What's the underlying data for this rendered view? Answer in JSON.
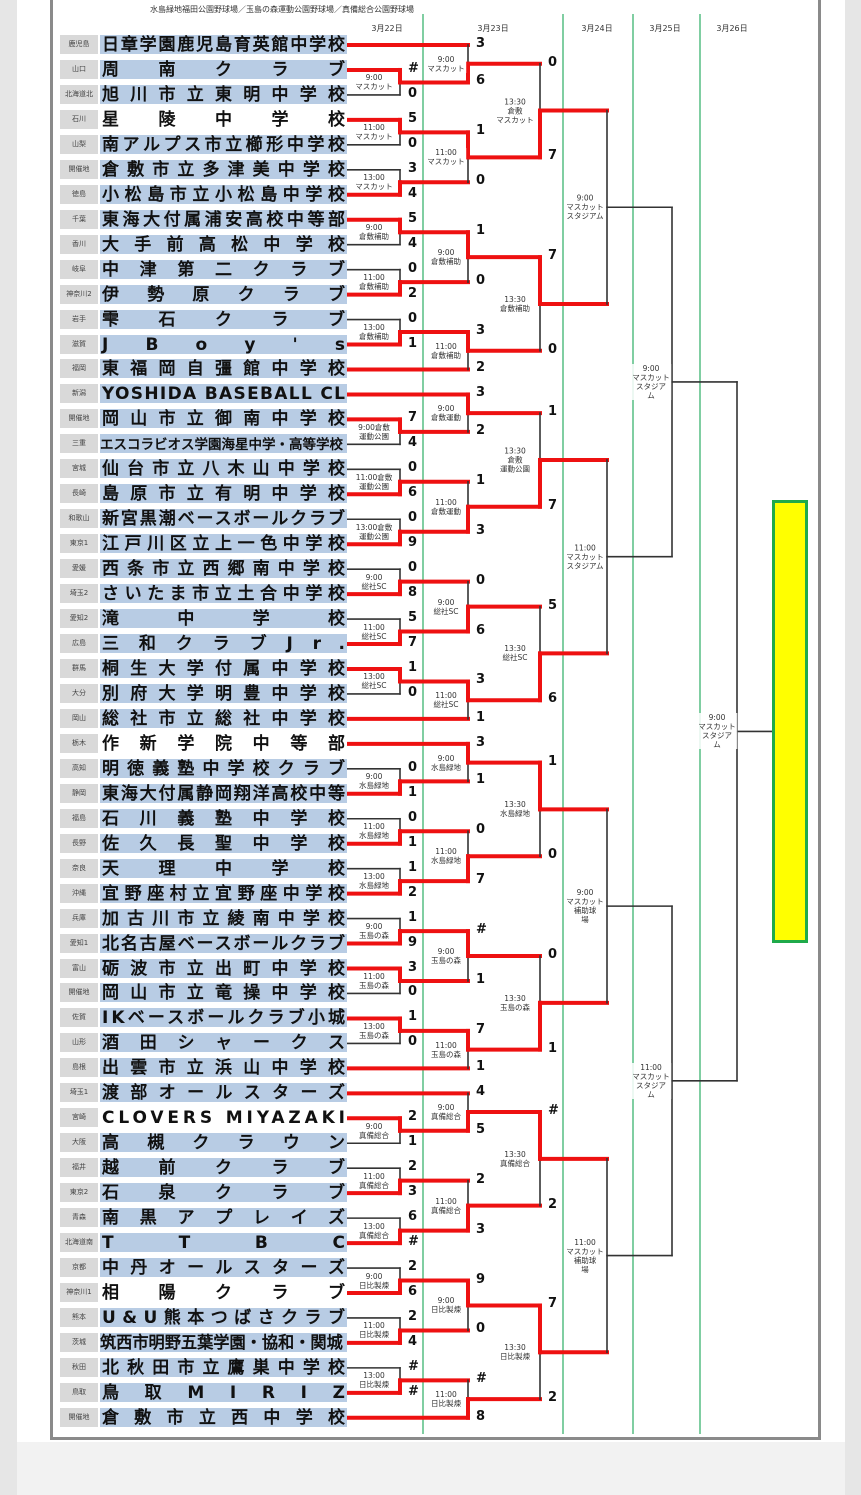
{
  "header": {
    "venues_line": "水島緑地福田公園野球場／玉島の森運動公園野球場／真備総合公園野球場",
    "dates": [
      "3月22日",
      "3月23日",
      "3月24日",
      "3月25日",
      "3月26日"
    ]
  },
  "colors": {
    "winner_line": "#ee1111",
    "line": "#333333",
    "day_divider": "#3cb371",
    "name_bg": "#b8cce4",
    "pref_bg": "#d9d9d9",
    "champion_fill": "#ffff00",
    "champion_border": "#1faa4a"
  },
  "blocks": [
    {
      "teams": [
        {
          "pref": "鹿児島",
          "name": "日章学園鹿児島育英館中学校"
        },
        {
          "pref": "山口",
          "name": "周南クラブ"
        },
        {
          "pref": "北海道北",
          "name": "旭川市立東明中学校"
        },
        {
          "pref": "石川",
          "name": "星陵中学校",
          "plain": true
        },
        {
          "pref": "山梨",
          "name": "南アルプス市立櫛形中学校"
        },
        {
          "pref": "開催地",
          "name": "倉敷市立多津美中学校"
        },
        {
          "pref": "徳島",
          "name": "小松島市立小松島中学校"
        }
      ],
      "r1": [
        {
          "time": "9:00",
          "venue": "マスカット",
          "scores": [
            "#",
            "0"
          ],
          "winner": 0
        },
        {
          "time": "11:00",
          "venue": "マスカット",
          "scores": [
            "5",
            "0"
          ],
          "winner": 0
        },
        {
          "time": "13:00",
          "venue": "マスカット",
          "scores": [
            "3",
            "4"
          ],
          "winner": 1
        }
      ],
      "r2": [
        {
          "time": "9:00",
          "venue": "マスカット",
          "scores": [
            "3",
            "6"
          ],
          "winner": 1
        },
        {
          "time": "11:00",
          "venue": "マスカット",
          "scores": [
            "1",
            "0"
          ],
          "winner": 0
        }
      ],
      "r3": {
        "time": "13:30",
        "venue": "倉敷\nマスカット",
        "scores": [
          "0",
          "7"
        ],
        "winner": 1
      }
    },
    {
      "teams": [
        {
          "pref": "千葉",
          "name": "東海大付属浦安高校中等部"
        },
        {
          "pref": "香川",
          "name": "大手前高松中学校"
        },
        {
          "pref": "岐阜",
          "name": "中津第二クラブ"
        },
        {
          "pref": "神奈川2",
          "name": "伊勢原クラブ"
        },
        {
          "pref": "岩手",
          "name": "雫石クラブ"
        },
        {
          "pref": "滋賀",
          "name": "JBoy's"
        },
        {
          "pref": "福岡",
          "name": "東福岡自彊館中学校"
        }
      ],
      "r1": [
        {
          "time": "9:00",
          "venue": "倉敷補助",
          "scores": [
            "5",
            "4"
          ],
          "winner": 0
        },
        {
          "time": "11:00",
          "venue": "倉敷補助",
          "scores": [
            "0",
            "2"
          ],
          "winner": 1
        },
        {
          "time": "13:00",
          "venue": "倉敷補助",
          "scores": [
            "0",
            "1"
          ],
          "winner": 1
        }
      ],
      "r2": [
        {
          "time": "9:00",
          "venue": "倉敷補助",
          "scores": [
            "1",
            "0"
          ],
          "winner": 0
        },
        {
          "time": "11:00",
          "venue": "倉敷補助",
          "scores": [
            "3",
            "2"
          ],
          "winner": 0
        }
      ],
      "r3": {
        "time": "13:30",
        "venue": "倉敷補助",
        "scores": [
          "7",
          "0"
        ],
        "winner": 0
      }
    },
    {
      "teams": [
        {
          "pref": "新潟",
          "name": "YOSHIDA BASEBALL CL"
        },
        {
          "pref": "開催地",
          "name": "岡山市立御南中学校"
        },
        {
          "pref": "三重",
          "name": "エスコラビオス学園海星中学・高等学校"
        },
        {
          "pref": "宮城",
          "name": "仙台市立八木山中学校"
        },
        {
          "pref": "長崎",
          "name": "島原市立有明中学校"
        },
        {
          "pref": "和歌山",
          "name": "新宮黒潮ベースボールクラブ"
        },
        {
          "pref": "東京1",
          "name": "江戸川区立上一色中学校"
        }
      ],
      "r1": [
        {
          "time": "9:00倉敷",
          "venue": "運動公園",
          "scores": [
            "7",
            "4"
          ],
          "winner": 0
        },
        {
          "time": "11:00倉敷",
          "venue": "運動公園",
          "scores": [
            "0",
            "6"
          ],
          "winner": 1
        },
        {
          "time": "13:00倉敷",
          "venue": "運動公園",
          "scores": [
            "0",
            "9"
          ],
          "winner": 1
        }
      ],
      "r2": [
        {
          "time": "9:00",
          "venue": "倉敷運動",
          "scores": [
            "3",
            "2"
          ],
          "winner": 0
        },
        {
          "time": "11:00",
          "venue": "倉敷運動",
          "scores": [
            "1",
            "3"
          ],
          "winner": 1
        }
      ],
      "r3": {
        "time": "13:30",
        "venue": "倉敷\n運動公園",
        "scores": [
          "1",
          "7"
        ],
        "winner": 1
      }
    },
    {
      "teams": [
        {
          "pref": "愛媛",
          "name": "西条市立西郷南中学校"
        },
        {
          "pref": "埼玉2",
          "name": "さいたま市立土合中学校"
        },
        {
          "pref": "愛知2",
          "name": "滝中学校"
        },
        {
          "pref": "広島",
          "name": "三和クラブJr."
        },
        {
          "pref": "群馬",
          "name": "桐生大学付属中学校"
        },
        {
          "pref": "大分",
          "name": "別府大学明豊中学校"
        },
        {
          "pref": "岡山",
          "name": "総社市立総社中学校"
        }
      ],
      "r1": [
        {
          "time": "9:00",
          "venue": "総社SC",
          "scores": [
            "0",
            "8"
          ],
          "winner": 1
        },
        {
          "time": "11:00",
          "venue": "総社SC",
          "scores": [
            "5",
            "7"
          ],
          "winner": 1
        },
        {
          "time": "13:00",
          "venue": "総社SC",
          "scores": [
            "1",
            "0"
          ],
          "winner": 0
        }
      ],
      "r2": [
        {
          "time": "9:00",
          "venue": "総社SC",
          "scores": [
            "0",
            "6"
          ],
          "winner": 1
        },
        {
          "time": "11:00",
          "venue": "総社SC",
          "scores": [
            "3",
            "1"
          ],
          "winner": 0
        }
      ],
      "r3": {
        "time": "13:30",
        "venue": "総社SC",
        "scores": [
          "5",
          "6"
        ],
        "winner": 1
      }
    },
    {
      "teams": [
        {
          "pref": "栃木",
          "name": "作新学院中等部",
          "plain": true
        },
        {
          "pref": "高知",
          "name": "明徳義塾中学校クラブ"
        },
        {
          "pref": "静岡",
          "name": "東海大付属静岡翔洋高校中等"
        },
        {
          "pref": "福島",
          "name": "石川義塾中学校"
        },
        {
          "pref": "長野",
          "name": "佐久長聖中学校"
        },
        {
          "pref": "奈良",
          "name": "天理中学校"
        },
        {
          "pref": "沖縄",
          "name": "宜野座村立宜野座中学校"
        }
      ],
      "r1": [
        {
          "time": "9:00",
          "venue": "水島緑地",
          "scores": [
            "0",
            "1"
          ],
          "winner": 1
        },
        {
          "time": "11:00",
          "venue": "水島緑地",
          "scores": [
            "0",
            "1"
          ],
          "winner": 1
        },
        {
          "time": "13:00",
          "venue": "水島緑地",
          "scores": [
            "1",
            "2"
          ],
          "winner": 1
        }
      ],
      "r2": [
        {
          "time": "9:00",
          "venue": "水島緑地",
          "scores": [
            "3",
            "1"
          ],
          "winner": 0
        },
        {
          "time": "11:00",
          "venue": "水島緑地",
          "scores": [
            "0",
            "7"
          ],
          "winner": 1
        }
      ],
      "r3": {
        "time": "13:30",
        "venue": "水島緑地",
        "scores": [
          "1",
          "0"
        ],
        "winner": 0
      }
    },
    {
      "teams": [
        {
          "pref": "兵庫",
          "name": "加古川市立綾南中学校"
        },
        {
          "pref": "愛知1",
          "name": "北名古屋ベースボールクラブ"
        },
        {
          "pref": "富山",
          "name": "砺波市立出町中学校"
        },
        {
          "pref": "開催地",
          "name": "岡山市立竜操中学校"
        },
        {
          "pref": "佐賀",
          "name": "IKベースボールクラブ小城"
        },
        {
          "pref": "山形",
          "name": "酒田シャークス"
        },
        {
          "pref": "島根",
          "name": "出雲市立浜山中学校"
        }
      ],
      "r1": [
        {
          "time": "9:00",
          "venue": "玉島の森",
          "scores": [
            "1",
            "9"
          ],
          "winner": 1
        },
        {
          "time": "11:00",
          "venue": "玉島の森",
          "scores": [
            "3",
            "0"
          ],
          "winner": 0
        },
        {
          "time": "13:00",
          "venue": "玉島の森",
          "scores": [
            "1",
            "0"
          ],
          "winner": 0
        }
      ],
      "r2": [
        {
          "time": "9:00",
          "venue": "玉島の森",
          "scores": [
            "#",
            "1"
          ],
          "winner": 0
        },
        {
          "time": "11:00",
          "venue": "玉島の森",
          "scores": [
            "7",
            "1"
          ],
          "winner": 0
        }
      ],
      "r3": {
        "time": "13:30",
        "venue": "玉島の森",
        "scores": [
          "0",
          "1"
        ],
        "winner": 1
      }
    },
    {
      "teams": [
        {
          "pref": "埼玉1",
          "name": "渡部オールスターズ"
        },
        {
          "pref": "宮崎",
          "name": "CLOVERS MIYAZAKI",
          "plain": true
        },
        {
          "pref": "大阪",
          "name": "高槻クラウン"
        },
        {
          "pref": "福井",
          "name": "越前クラブ"
        },
        {
          "pref": "東京2",
          "name": "石泉クラブ"
        },
        {
          "pref": "青森",
          "name": "南黒アプレイズ"
        },
        {
          "pref": "北海道南",
          "name": "TTBC"
        }
      ],
      "r1": [
        {
          "time": "9:00",
          "venue": "真備総合",
          "scores": [
            "2",
            "1"
          ],
          "winner": 0
        },
        {
          "time": "11:00",
          "venue": "真備総合",
          "scores": [
            "2",
            "3"
          ],
          "winner": 1
        },
        {
          "time": "13:00",
          "venue": "真備総合",
          "scores": [
            "6",
            "#"
          ],
          "winner": 1
        }
      ],
      "r2": [
        {
          "time": "9:00",
          "venue": "真備総合",
          "scores": [
            "4",
            "5"
          ],
          "winner": 1
        },
        {
          "time": "11:00",
          "venue": "真備総合",
          "scores": [
            "2",
            "3"
          ],
          "winner": 1
        }
      ],
      "r3": {
        "time": "13:30",
        "venue": "真備総合",
        "scores": [
          "#",
          "2"
        ],
        "winner": 0
      }
    },
    {
      "teams": [
        {
          "pref": "京都",
          "name": "中丹オールスターズ"
        },
        {
          "pref": "神奈川1",
          "name": "相陽クラブ",
          "plain": true
        },
        {
          "pref": "熊本",
          "name": "U&U熊本つばさクラブ"
        },
        {
          "pref": "茨城",
          "name": "筑西市明野五葉学園・協和・関城"
        },
        {
          "pref": "秋田",
          "name": "北秋田市立鷹巣中学校"
        },
        {
          "pref": "鳥取",
          "name": "鳥取MIRIZ"
        },
        {
          "pref": "開催地",
          "name": "倉敷市立西中学校"
        }
      ],
      "r1": [
        {
          "time": "9:00",
          "venue": "日比製煉",
          "scores": [
            "2",
            "6"
          ],
          "winner": 1
        },
        {
          "time": "11:00",
          "venue": "日比製煉",
          "scores": [
            "2",
            "4"
          ],
          "winner": 1
        },
        {
          "time": "13:00",
          "venue": "日比製煉",
          "scores": [
            "#",
            "#"
          ],
          "winner": 1
        }
      ],
      "r2": [
        {
          "time": "9:00",
          "venue": "日比製煉",
          "scores": [
            "9",
            "0"
          ],
          "winner": 0
        },
        {
          "time": "11:00",
          "venue": "日比製煉",
          "scores": [
            "#",
            "8"
          ],
          "winner": 1
        }
      ],
      "r3": {
        "time": "13:30",
        "venue": "日比製煉",
        "scores": [
          "7",
          "2"
        ],
        "winner": 0
      }
    }
  ],
  "round4": [
    {
      "time": "9:00",
      "venue": "マスカット\nスタジアム"
    },
    {
      "time": "11:00",
      "venue": "マスカット\nスタジアム"
    },
    {
      "time": "9:00",
      "venue": "マスカット\n補助球\n場"
    },
    {
      "time": "11:00",
      "venue": "マスカット\n補助球\n場"
    }
  ],
  "semifinals": [
    {
      "time": "9:00",
      "venue": "マスカット\nスタジア\nム"
    },
    {
      "time": "11:00",
      "venue": "マスカット\nスタジア\nム"
    }
  ],
  "final": {
    "time": "9:00",
    "venue": "マスカット\nスタジア\nム"
  }
}
